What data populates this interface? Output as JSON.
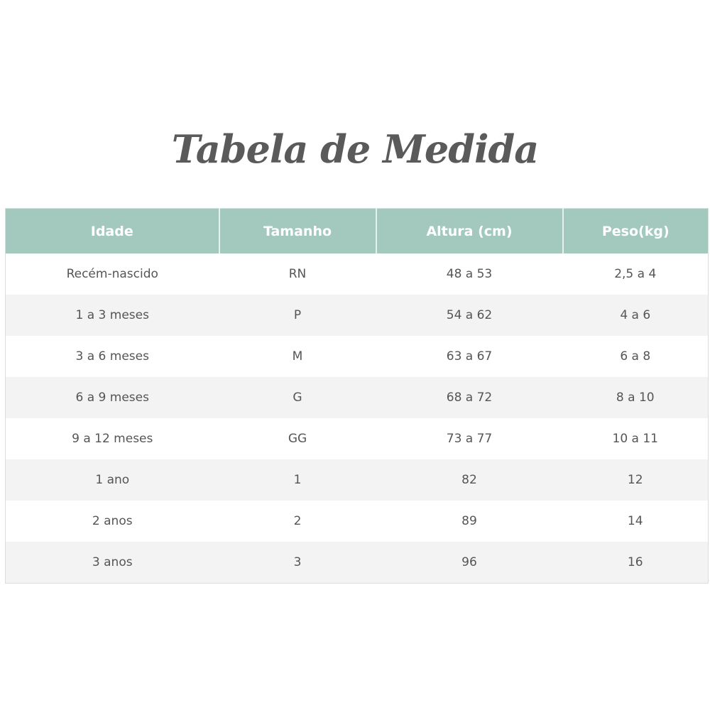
{
  "title": "Tabela de Medida",
  "headers": [
    "Idade",
    "Tamanho",
    "Altura (cm)",
    "Peso(kg)"
  ],
  "rows": [
    [
      "Recém-nascido",
      "RN",
      "48 a 53",
      "2,5 a 4"
    ],
    [
      "1 a 3 meses",
      "P",
      "54 a 62",
      "4 a 6"
    ],
    [
      "3 a 6 meses",
      "M",
      "63 a 67",
      "6 a 8"
    ],
    [
      "6 a 9 meses",
      "G",
      "68 a 72",
      "8 a 10"
    ],
    [
      "9 a 12 meses",
      "GG",
      "73 a 77",
      "10 a 11"
    ],
    [
      "1 ano",
      "1",
      "82",
      "12"
    ],
    [
      "2 anos",
      "2",
      "89",
      "14"
    ],
    [
      "3 anos",
      "3",
      "96",
      "16"
    ]
  ],
  "colors": {
    "header_bg": "#a3c9bf",
    "alt_row_bg": "#f3f3f3",
    "text": "#555555"
  }
}
